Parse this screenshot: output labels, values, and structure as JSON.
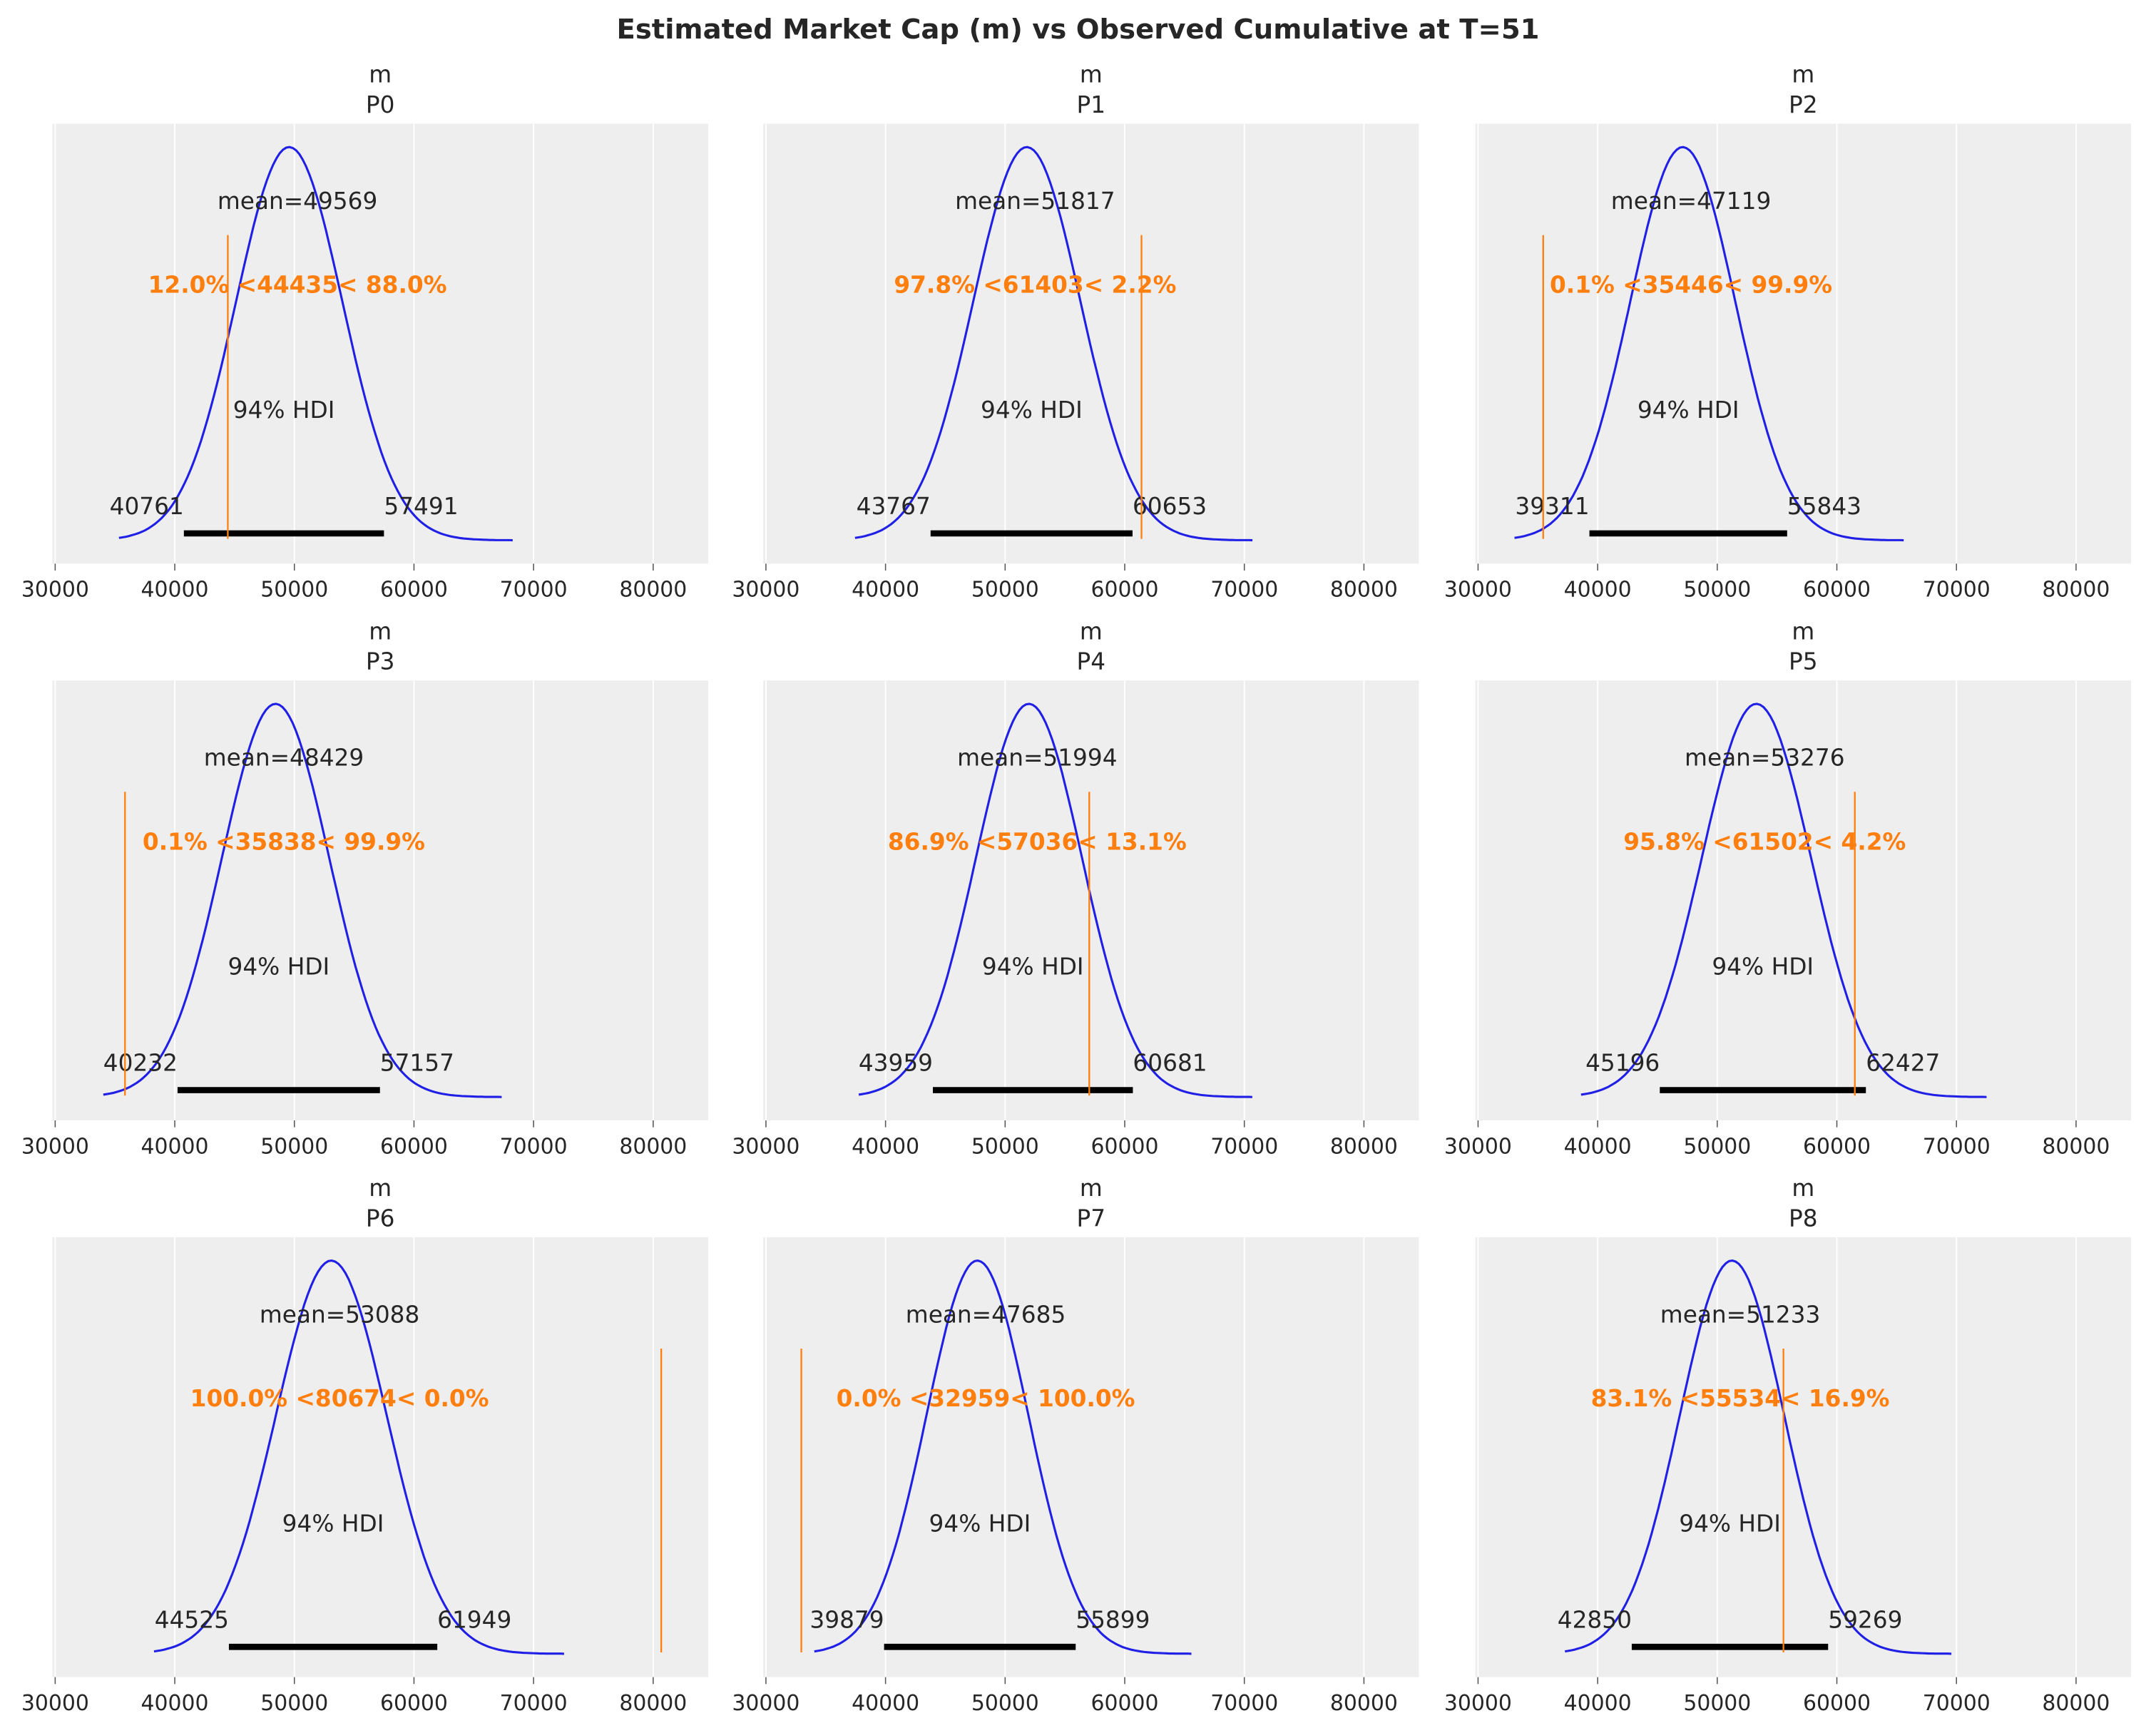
{
  "chart_data": {
    "type": "line",
    "title": "Estimated Market Cap (m) vs Observed Cumulative at T=51",
    "xlim": [
      29770,
      84600
    ],
    "x_ticks": [
      30000,
      40000,
      50000,
      60000,
      70000,
      80000
    ],
    "grid": true,
    "hdi_label": "94% HDI",
    "colors": {
      "density": "#1f1fe6",
      "reference": "#ff7f0e",
      "hdi": "#000000",
      "panel_bg": "#eeeeee",
      "grid": "#ffffff"
    },
    "panels": [
      {
        "var": "m",
        "label": "P0",
        "mean": 49569,
        "hdi": [
          40761,
          57491
        ],
        "ref": 44435,
        "ref_pct": [
          "12.0%",
          "88.0%"
        ]
      },
      {
        "var": "m",
        "label": "P1",
        "mean": 51817,
        "hdi": [
          43767,
          60653
        ],
        "ref": 61403,
        "ref_pct": [
          "97.8%",
          "2.2%"
        ]
      },
      {
        "var": "m",
        "label": "P2",
        "mean": 47119,
        "hdi": [
          39311,
          55843
        ],
        "ref": 35446,
        "ref_pct": [
          "0.1%",
          "99.9%"
        ]
      },
      {
        "var": "m",
        "label": "P3",
        "mean": 48429,
        "hdi": [
          40232,
          57157
        ],
        "ref": 35838,
        "ref_pct": [
          "0.1%",
          "99.9%"
        ]
      },
      {
        "var": "m",
        "label": "P4",
        "mean": 51994,
        "hdi": [
          43959,
          60681
        ],
        "ref": 57036,
        "ref_pct": [
          "86.9%",
          "13.1%"
        ]
      },
      {
        "var": "m",
        "label": "P5",
        "mean": 53276,
        "hdi": [
          45196,
          62427
        ],
        "ref": 61502,
        "ref_pct": [
          "95.8%",
          "4.2%"
        ]
      },
      {
        "var": "m",
        "label": "P6",
        "mean": 53088,
        "hdi": [
          44525,
          61949
        ],
        "ref": 80674,
        "ref_pct": [
          "100.0%",
          "0.0%"
        ]
      },
      {
        "var": "m",
        "label": "P7",
        "mean": 47685,
        "hdi": [
          39879,
          55899
        ],
        "ref": 32959,
        "ref_pct": [
          "0.0%",
          "100.0%"
        ]
      },
      {
        "var": "m",
        "label": "P8",
        "mean": 51233,
        "hdi": [
          42850,
          59269
        ],
        "ref": 55534,
        "ref_pct": [
          "83.1%",
          "16.9%"
        ]
      }
    ]
  }
}
